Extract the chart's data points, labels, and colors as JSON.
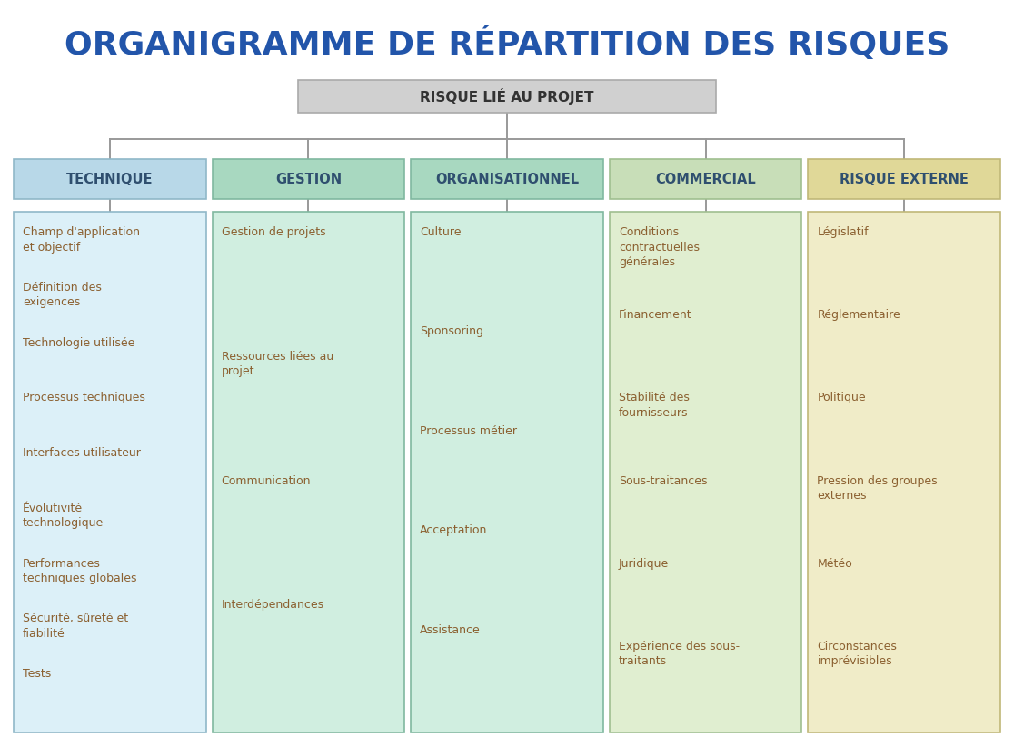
{
  "title": "ORGANIGRAMME DE RÉPARTITION DES RISQUES",
  "title_color": "#2255AA",
  "title_fontsize": 26,
  "bg_color": "#FFFFFF",
  "root_label": "RISQUE LIÉ AU PROJET",
  "root_box_color": "#D0D0D0",
  "root_border_color": "#AAAAAA",
  "columns": [
    {
      "header": "TECHNIQUE",
      "header_bg": "#B8D8E8",
      "header_border": "#90B8C8",
      "body_bg": "#DCF0F8",
      "body_border": "#90B8C8",
      "text_color": "#8B6030",
      "items": [
        "Champ d'application\net objectif",
        "Définition des\nexigences",
        "Technologie utilisée",
        "Processus techniques",
        "Interfaces utilisateur",
        "Évolutivité\ntechnologique",
        "Performances\ntechniques globales",
        "Sécurité, sûreté et\nfiabilité",
        "Tests"
      ]
    },
    {
      "header": "GESTION",
      "header_bg": "#A8D8C0",
      "header_border": "#80B8A0",
      "body_bg": "#D0EEE0",
      "body_border": "#80B8A0",
      "text_color": "#8B6030",
      "items": [
        "Gestion de projets",
        "Ressources liées au\nprojet",
        "Communication",
        "Interdépendances"
      ]
    },
    {
      "header": "ORGANISATIONNEL",
      "header_bg": "#A8D8C0",
      "header_border": "#80B8A0",
      "body_bg": "#D0EEE0",
      "body_border": "#80B8A0",
      "text_color": "#8B6030",
      "items": [
        "Culture",
        "Sponsoring",
        "Processus métier",
        "Acceptation",
        "Assistance"
      ]
    },
    {
      "header": "COMMERCIAL",
      "header_bg": "#C8DEB8",
      "header_border": "#A0BF90",
      "body_bg": "#E0EED0",
      "body_border": "#A0BF90",
      "text_color": "#8B6030",
      "items": [
        "Conditions\ncontractuelles\ngénérales",
        "Financement",
        "Stabilité des\nfournisseurs",
        "Sous-traitances",
        "Juridique",
        "Expérience des sous-\ntraitants"
      ]
    },
    {
      "header": "RISQUE EXTERNE",
      "header_bg": "#E0D898",
      "header_border": "#C0B878",
      "body_bg": "#F0ECC8",
      "body_border": "#C0B878",
      "text_color": "#8B6030",
      "items": [
        "Législatif",
        "Réglementaire",
        "Politique",
        "Pression des groupes\nexternes",
        "Météo",
        "Circonstances\nimprévisibles"
      ]
    }
  ],
  "connector_color": "#999999",
  "item_text_fontsize": 9.0,
  "header_fontsize": 10.5,
  "root_fontsize": 11
}
